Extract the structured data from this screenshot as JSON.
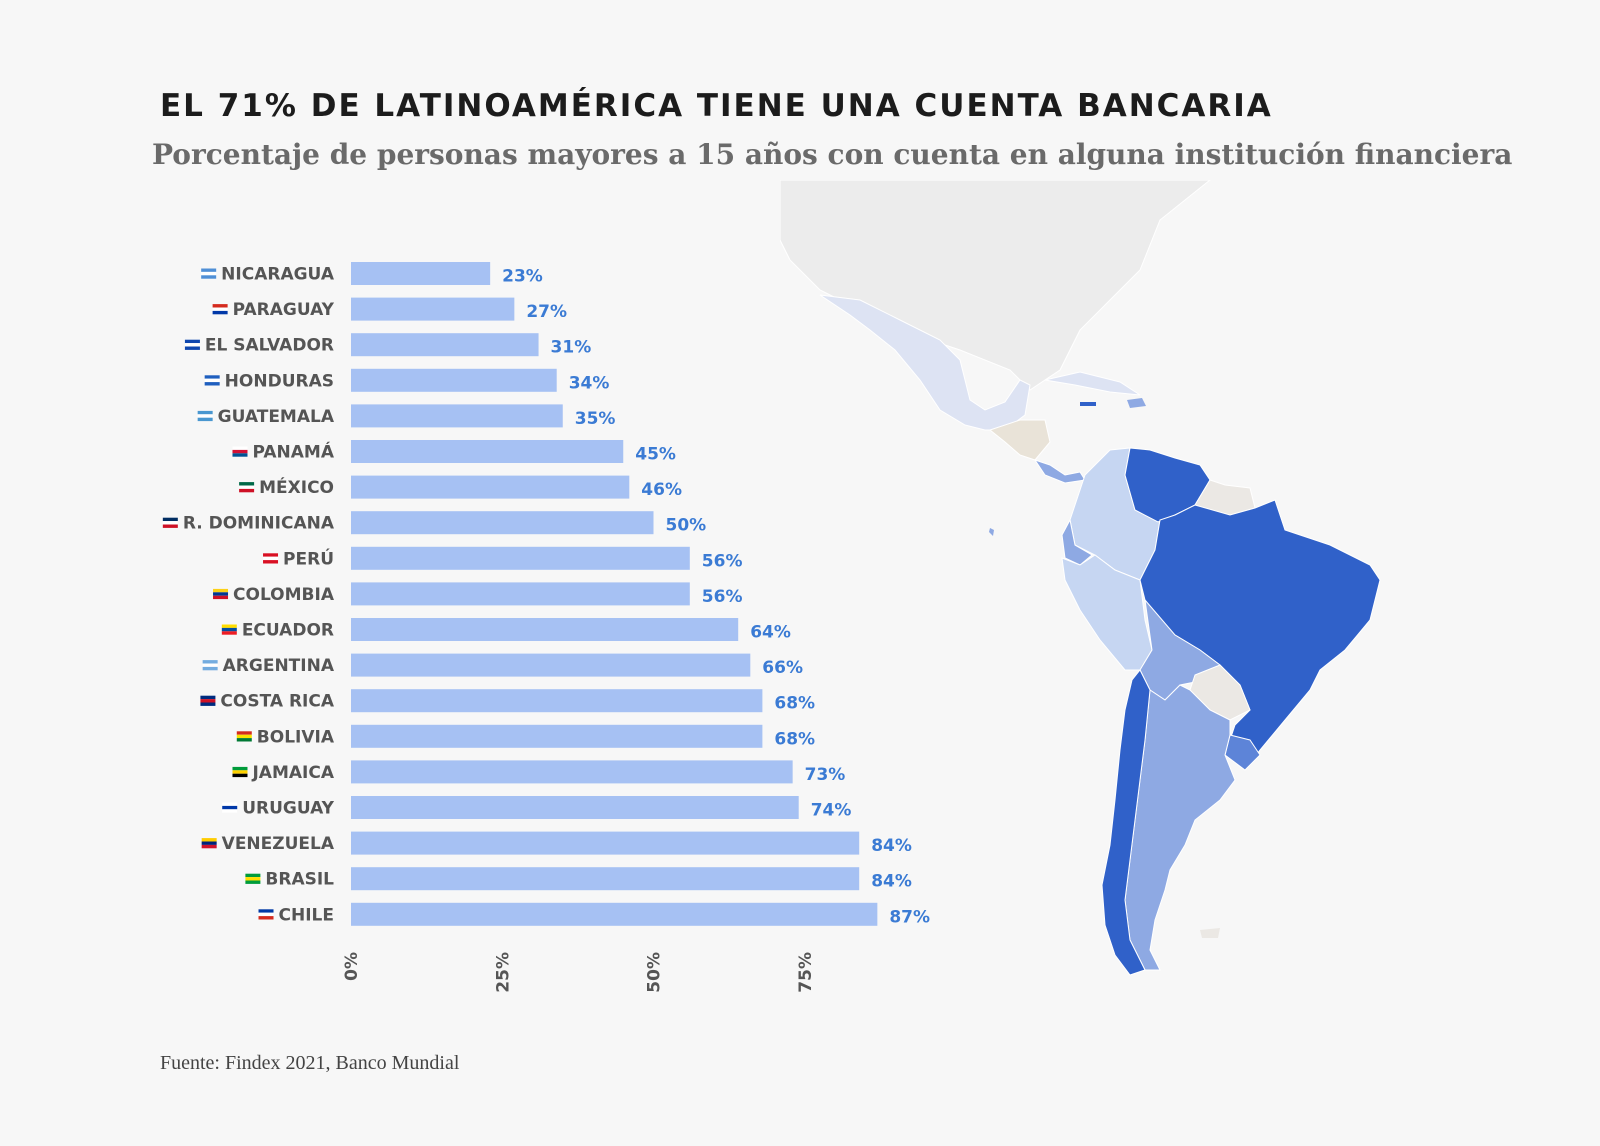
{
  "title": "EL 71% DE LATINOAMÉRICA TIENE UNA CUENTA BANCARIA",
  "subtitle": "Porcentaje de personas mayores a 15 años con cuenta en alguna institución financiera",
  "source": "Fuente: Findex 2021, Banco Mundial",
  "colors": {
    "bar": "#a6c1f3",
    "value_label": "#3b7bd4",
    "category_label": "#555555",
    "map_high": "#3061c9",
    "map_mid": "#8ea9e3",
    "map_low": "#c6d6f2",
    "map_lowest": "#dde3f3",
    "map_nodata": "#ebe8e4",
    "map_north": "#ececec"
  },
  "chart_data": {
    "type": "bar",
    "orientation": "horizontal",
    "categories": [
      "NICARAGUA",
      "PARAGUAY",
      "EL SALVADOR",
      "HONDURAS",
      "GUATEMALA",
      "PANAMÁ",
      "MÉXICO",
      "R. DOMINICANA",
      "PERÚ",
      "COLOMBIA",
      "ECUADOR",
      "ARGENTINA",
      "COSTA RICA",
      "BOLIVIA",
      "JAMAICA",
      "URUGUAY",
      "VENEZUELA",
      "BRASIL",
      "CHILE"
    ],
    "values": [
      23,
      27,
      31,
      34,
      35,
      45,
      46,
      50,
      56,
      56,
      64,
      66,
      68,
      68,
      73,
      74,
      84,
      84,
      87
    ],
    "value_labels": [
      "23%",
      "27%",
      "31%",
      "34%",
      "35%",
      "45%",
      "46%",
      "50%",
      "56%",
      "56%",
      "64%",
      "66%",
      "68%",
      "68%",
      "73%",
      "74%",
      "84%",
      "84%",
      "87%"
    ],
    "flags": [
      "flag-nicaragua-icon",
      "flag-paraguay-icon",
      "flag-el-salvador-icon",
      "flag-honduras-icon",
      "flag-guatemala-icon",
      "flag-panama-icon",
      "flag-mexico-icon",
      "flag-dominican-republic-icon",
      "flag-peru-icon",
      "flag-colombia-icon",
      "flag-ecuador-icon",
      "flag-argentina-icon",
      "flag-costa-rica-icon",
      "flag-bolivia-icon",
      "flag-jamaica-icon",
      "flag-uruguay-icon",
      "flag-venezuela-icon",
      "flag-brazil-icon",
      "flag-chile-icon"
    ],
    "x_ticks": [
      0,
      25,
      50,
      75
    ],
    "x_tick_labels": [
      "0%",
      "25%",
      "50%",
      "75%"
    ],
    "xlim": [
      0,
      100
    ],
    "xlabel": "",
    "ylabel": "",
    "grid": false
  }
}
